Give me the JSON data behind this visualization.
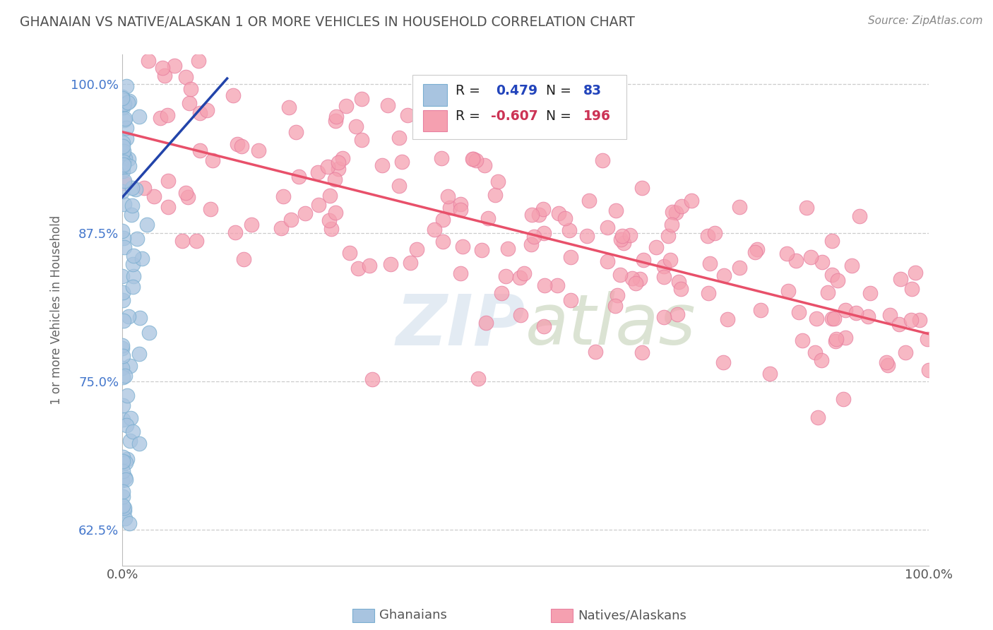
{
  "title": "GHANAIAN VS NATIVE/ALASKAN 1 OR MORE VEHICLES IN HOUSEHOLD CORRELATION CHART",
  "source_text": "Source: ZipAtlas.com",
  "ylabel": "1 or more Vehicles in Household",
  "xlim": [
    0.0,
    1.0
  ],
  "ylim": [
    0.595,
    1.025
  ],
  "yticks": [
    0.625,
    0.75,
    0.875,
    1.0
  ],
  "ytick_labels": [
    "62.5%",
    "75.0%",
    "87.5%",
    "100.0%"
  ],
  "blue_color": "#a8c4e0",
  "pink_color": "#f5a0b0",
  "blue_edge_color": "#7aaed0",
  "pink_edge_color": "#e880a0",
  "blue_line_color": "#2244aa",
  "pink_line_color": "#e8506a",
  "blue_R": 0.479,
  "blue_N": 83,
  "pink_R": -0.607,
  "pink_N": 196,
  "blue_line_x": [
    0.0,
    0.13
  ],
  "blue_line_y": [
    0.905,
    1.005
  ],
  "pink_line_x": [
    0.0,
    1.0
  ],
  "pink_line_y": [
    0.96,
    0.79
  ],
  "background_color": "#ffffff",
  "grid_color": "#cccccc",
  "title_color": "#505050",
  "legend_blue_val_color": "#2244bb",
  "legend_pink_val_color": "#cc3355",
  "watermark_color": "#c8d8e8",
  "watermark_alpha": 0.5
}
